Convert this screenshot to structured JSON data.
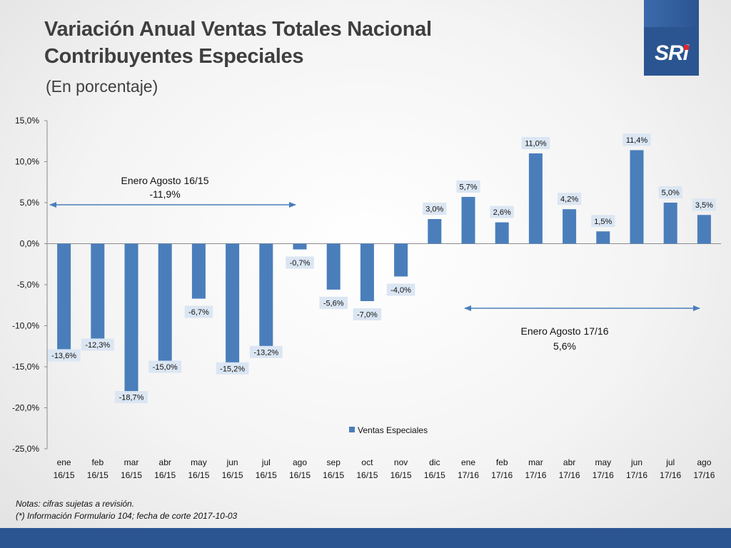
{
  "header": {
    "title_line1": "Variación Anual Ventas Totales Nacional",
    "title_line2": "Contribuyentes Especiales",
    "subtitle": "(En porcentaje)"
  },
  "logo": {
    "text": "SRi"
  },
  "colors": {
    "bar": "#4a7ebb",
    "arrow": "#4a7ebb",
    "brand_blue": "#2b5591",
    "logo_accent": "#e2262c"
  },
  "chart_data": {
    "type": "bar",
    "categories": [
      [
        "ene",
        "16/15"
      ],
      [
        "feb",
        "16/15"
      ],
      [
        "mar",
        "16/15"
      ],
      [
        "abr",
        "16/15"
      ],
      [
        "may",
        "16/15"
      ],
      [
        "jun",
        "16/15"
      ],
      [
        "jul",
        "16/15"
      ],
      [
        "ago",
        "16/15"
      ],
      [
        "sep",
        "16/15"
      ],
      [
        "oct",
        "16/15"
      ],
      [
        "nov",
        "16/15"
      ],
      [
        "dic",
        "16/15"
      ],
      [
        "ene",
        "17/16"
      ],
      [
        "feb",
        "17/16"
      ],
      [
        "mar",
        "17/16"
      ],
      [
        "abr",
        "17/16"
      ],
      [
        "may",
        "17/16"
      ],
      [
        "jun",
        "17/16"
      ],
      [
        "jul",
        "17/16"
      ],
      [
        "ago",
        "17/16"
      ]
    ],
    "series": [
      {
        "name": "Ventas Especiales",
        "values": [
          -13.6,
          -12.3,
          -18.7,
          -15.0,
          -6.7,
          -15.2,
          -13.2,
          -0.7,
          -5.6,
          -7.0,
          -4.0,
          3.0,
          5.7,
          2.6,
          11.0,
          4.2,
          1.5,
          11.4,
          5.0,
          3.5
        ],
        "labels": [
          "-13,6%",
          "-12,3%",
          "-18,7%",
          "-15,0%",
          "-6,7%",
          "-15,2%",
          "-13,2%",
          "-0,7%",
          "-5,6%",
          "-7,0%",
          "-4,0%",
          "3,0%",
          "5,7%",
          "2,6%",
          "11,0%",
          "4,2%",
          "1,5%",
          "11,4%",
          "5,0%",
          "3,5%"
        ]
      }
    ],
    "ylim": [
      -25,
      15
    ],
    "yticks": [
      15,
      10,
      5,
      0,
      -5,
      -10,
      -15,
      -20,
      -25
    ],
    "ytick_labels": [
      "15,0%",
      "10,0%",
      "5,0%",
      "0,0%",
      "-5,0%",
      "-10,0%",
      "-15,0%",
      "-20,0%",
      "-25,0%"
    ],
    "grid": false,
    "legend_position": "inside-bottom-center",
    "annotations": [
      {
        "line1": "Enero Agosto 16/15",
        "line2": "-11,9%",
        "from_category": 0,
        "to_category": 7
      },
      {
        "line1": "Enero Agosto 17/16",
        "line2": "5,6%",
        "from_category": 12,
        "to_category": 19
      }
    ]
  },
  "notes": {
    "line1": "Notas: cifras sujetas a revisión.",
    "line2": "(*) Información Formulario 104; fecha de corte 2017-10-03"
  }
}
